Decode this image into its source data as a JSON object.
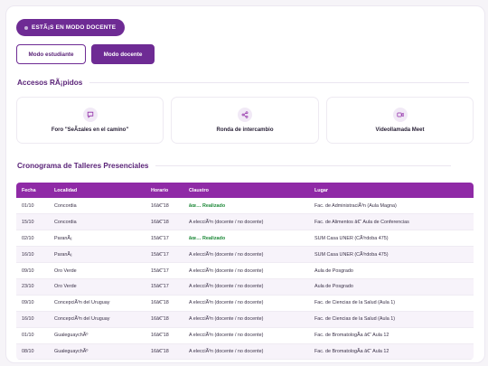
{
  "mode_pill": {
    "label": "ESTÃ¡S EN MODO DOCENTE"
  },
  "buttons": {
    "student": "Modo estudiante",
    "teacher": "Modo docente"
  },
  "quick_access": {
    "title": "Accesos RÃ¡pidos",
    "items": [
      {
        "label": "Foro \"SeÃ±ales en el camino\"",
        "icon": "chat-icon"
      },
      {
        "label": "Ronda de intercambio",
        "icon": "share-icon"
      },
      {
        "label": "Videollamada Meet",
        "icon": "video-icon"
      }
    ]
  },
  "schedule": {
    "title": "Cronograma de Talleres Presenciales",
    "columns": [
      "Fecha",
      "Localidad",
      "Horario",
      "Claustro",
      "Lugar"
    ],
    "rows": [
      [
        "01/10",
        "Concordia",
        "16â€“18",
        "âœ… Realizado",
        "Fac. de AdministraciÃ³n (Aula Magna)"
      ],
      [
        "15/10",
        "Concordia",
        "16â€“18",
        "A elecciÃ³n (docente / no docente)",
        "Fac. de Alimentos â€“ Aula de Conferencias"
      ],
      [
        "02/10",
        "ParanÃ¡",
        "15â€“17",
        "âœ… Realizado",
        "SUM Casa UNER (CÃ³rdoba 475)"
      ],
      [
        "16/10",
        "ParanÃ¡",
        "15â€“17",
        "A elecciÃ³n (docente / no docente)",
        "SUM Casa UNER (CÃ³rdoba 475)"
      ],
      [
        "09/10",
        "Oro Verde",
        "15â€“17",
        "A elecciÃ³n (docente / no docente)",
        "Aula de Posgrado"
      ],
      [
        "23/10",
        "Oro Verde",
        "15â€“17",
        "A elecciÃ³n (docente / no docente)",
        "Aula de Posgrado"
      ],
      [
        "09/10",
        "ConcepciÃ³n del Uruguay",
        "16â€“18",
        "A elecciÃ³n (docente / no docente)",
        "Fac. de Ciencias de la Salud (Aula 1)"
      ],
      [
        "16/10",
        "ConcepciÃ³n del Uruguay",
        "16â€“18",
        "A elecciÃ³n (docente / no docente)",
        "Fac. de Ciencias de la Salud (Aula 1)"
      ],
      [
        "01/10",
        "GualeguaychÃº",
        "16â€“18",
        "A elecciÃ³n (docente / no docente)",
        "Fac. de BromatologÃ­a â€“ Aula 12"
      ],
      [
        "08/10",
        "GualeguaychÃº",
        "16â€“18",
        "A elecciÃ³n (docente / no docente)",
        "Fac. de BromatologÃ­a â€“ Aula 12"
      ]
    ]
  },
  "colors": {
    "brand": "#6e2b94",
    "table_header": "#8f2aa6",
    "done": "#1f8a3a"
  }
}
